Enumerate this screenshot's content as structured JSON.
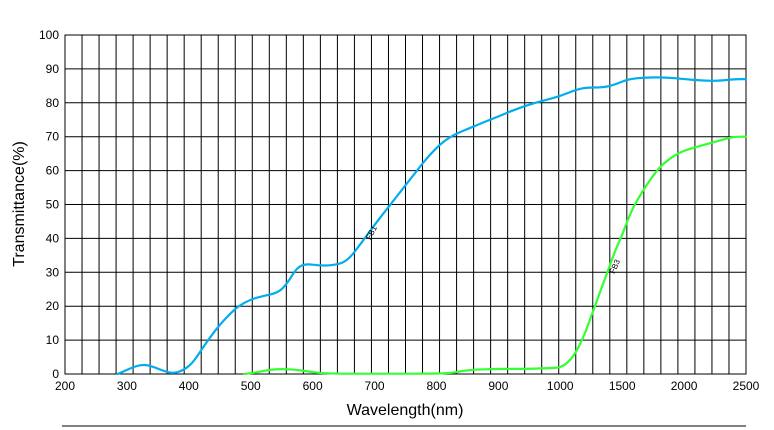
{
  "chart_data": {
    "type": "line",
    "title": "",
    "xlabel": "Wavelength(nm)",
    "ylabel": "Transmittance(%)",
    "x_ticks": [
      "200",
      "300",
      "400",
      "500",
      "600",
      "700",
      "800",
      "900",
      "1000",
      "1500",
      "2000",
      "2500"
    ],
    "y_ticks": [
      "0",
      "10",
      "20",
      "30",
      "40",
      "50",
      "60",
      "70",
      "80",
      "90",
      "100"
    ],
    "ylim": [
      0,
      100
    ],
    "grid": true,
    "legend": "none",
    "series": [
      {
        "name": "FB1",
        "color": "#00AEEF",
        "points": [
          [
            285,
            0
          ],
          [
            300,
            1.2
          ],
          [
            315,
            2.4
          ],
          [
            330,
            2.8
          ],
          [
            345,
            2.0
          ],
          [
            360,
            0.8
          ],
          [
            375,
            0.2
          ],
          [
            390,
            1.0
          ],
          [
            405,
            3.0
          ],
          [
            420,
            7.0
          ],
          [
            435,
            11.0
          ],
          [
            450,
            14.5
          ],
          [
            465,
            17.5
          ],
          [
            480,
            20.0
          ],
          [
            500,
            22.0
          ],
          [
            520,
            23.0
          ],
          [
            545,
            24.0
          ],
          [
            560,
            27.0
          ],
          [
            575,
            31.5
          ],
          [
            590,
            32.5
          ],
          [
            610,
            32.0
          ],
          [
            630,
            32.0
          ],
          [
            655,
            33.0
          ],
          [
            680,
            39.0
          ],
          [
            700,
            44.0
          ],
          [
            730,
            51.0
          ],
          [
            760,
            58.0
          ],
          [
            790,
            65.0
          ],
          [
            820,
            70.0
          ],
          [
            860,
            73.0
          ],
          [
            900,
            76.0
          ],
          [
            940,
            79.0
          ],
          [
            980,
            81.0
          ],
          [
            1000,
            82.0
          ],
          [
            1100,
            83.5
          ],
          [
            1200,
            84.5
          ],
          [
            1350,
            84.5
          ],
          [
            1450,
            85.5
          ],
          [
            1550,
            87.0
          ],
          [
            1700,
            87.5
          ],
          [
            1850,
            87.5
          ],
          [
            2000,
            87.0
          ],
          [
            2150,
            86.5
          ],
          [
            2300,
            86.5
          ],
          [
            2400,
            87.0
          ],
          [
            2500,
            87.0
          ]
        ]
      },
      {
        "name": "FB3",
        "color": "#33FF33",
        "points": [
          [
            490,
            0
          ],
          [
            510,
            0.5
          ],
          [
            530,
            1.2
          ],
          [
            550,
            1.5
          ],
          [
            570,
            1.3
          ],
          [
            590,
            0.8
          ],
          [
            610,
            0.3
          ],
          [
            640,
            0.1
          ],
          [
            700,
            0.1
          ],
          [
            780,
            0.1
          ],
          [
            820,
            0.2
          ],
          [
            840,
            0.8
          ],
          [
            860,
            1.3
          ],
          [
            900,
            1.5
          ],
          [
            950,
            1.5
          ],
          [
            990,
            1.8
          ],
          [
            1000,
            2.0
          ],
          [
            1050,
            3.0
          ],
          [
            1100,
            5.0
          ],
          [
            1150,
            8.0
          ],
          [
            1200,
            12.0
          ],
          [
            1250,
            17.0
          ],
          [
            1300,
            22.0
          ],
          [
            1350,
            27.0
          ],
          [
            1400,
            32.0
          ],
          [
            1450,
            37.0
          ],
          [
            1500,
            41.0
          ],
          [
            1550,
            46.0
          ],
          [
            1600,
            50.0
          ],
          [
            1700,
            56.0
          ],
          [
            1800,
            61.0
          ],
          [
            1900,
            64.0
          ],
          [
            2000,
            66.0
          ],
          [
            2200,
            68.0
          ],
          [
            2300,
            69.0
          ],
          [
            2400,
            70.0
          ],
          [
            2500,
            70.0
          ]
        ]
      }
    ]
  }
}
